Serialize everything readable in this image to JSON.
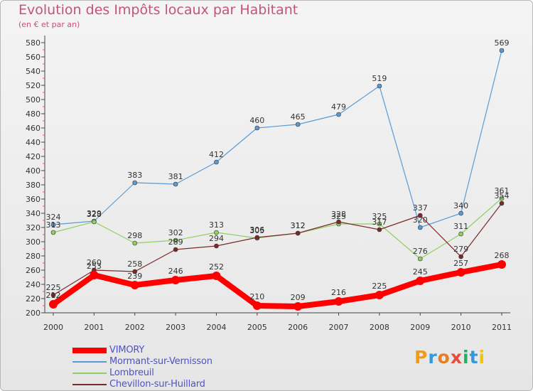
{
  "header": {
    "title": "Evolution des Impôts locaux par Habitant",
    "subtitle": "(en € et par an)"
  },
  "logo": {
    "text": "Proxiti",
    "letters": [
      {
        "ch": "P",
        "color": "#f39c12"
      },
      {
        "ch": "r",
        "color": "#3498db"
      },
      {
        "ch": "o",
        "color": "#e67e22"
      },
      {
        "ch": "x",
        "color": "#e74c3c"
      },
      {
        "ch": "i",
        "color": "#27ae60"
      },
      {
        "ch": "t",
        "color": "#3498db"
      },
      {
        "ch": "i",
        "color": "#f1c40f"
      }
    ]
  },
  "chart_data": {
    "type": "line",
    "title": "Evolution des Impôts locaux par Habitant",
    "subtitle": "(en € et par an)",
    "x": [
      2000,
      2001,
      2002,
      2003,
      2004,
      2005,
      2006,
      2007,
      2008,
      2009,
      2010,
      2011
    ],
    "x_tick_labels": [
      "2000",
      "2001",
      "2002",
      "2003",
      "2004",
      "2005",
      "2006",
      "2007",
      "2008",
      "2009",
      "2010",
      "2011"
    ],
    "ylim": [
      200,
      580
    ],
    "y_ticks": [
      200,
      220,
      240,
      260,
      280,
      300,
      320,
      340,
      360,
      380,
      400,
      420,
      440,
      460,
      480,
      500,
      520,
      540,
      560,
      580
    ],
    "grid": false,
    "legend_position": "bottom-left",
    "series": [
      {
        "name": "VIMORY",
        "color": "#ff0000",
        "values": [
          212,
          253,
          239,
          246,
          252,
          210,
          209,
          216,
          225,
          245,
          257,
          268
        ]
      },
      {
        "name": "Mormant-sur-Vernisson",
        "color": "#5a9bd5",
        "values": [
          324,
          329,
          383,
          381,
          412,
          460,
          465,
          479,
          519,
          320,
          340,
          569
        ]
      },
      {
        "name": "Lombreuil",
        "color": "#90d060",
        "values": [
          313,
          328,
          298,
          302,
          313,
          305,
          312,
          325,
          325,
          276,
          311,
          361
        ]
      },
      {
        "name": "Chevillon-sur-Huillard",
        "color": "#7a2a2a",
        "values": [
          225,
          260,
          258,
          289,
          294,
          306,
          312,
          328,
          317,
          337,
          279,
          354
        ]
      }
    ]
  }
}
